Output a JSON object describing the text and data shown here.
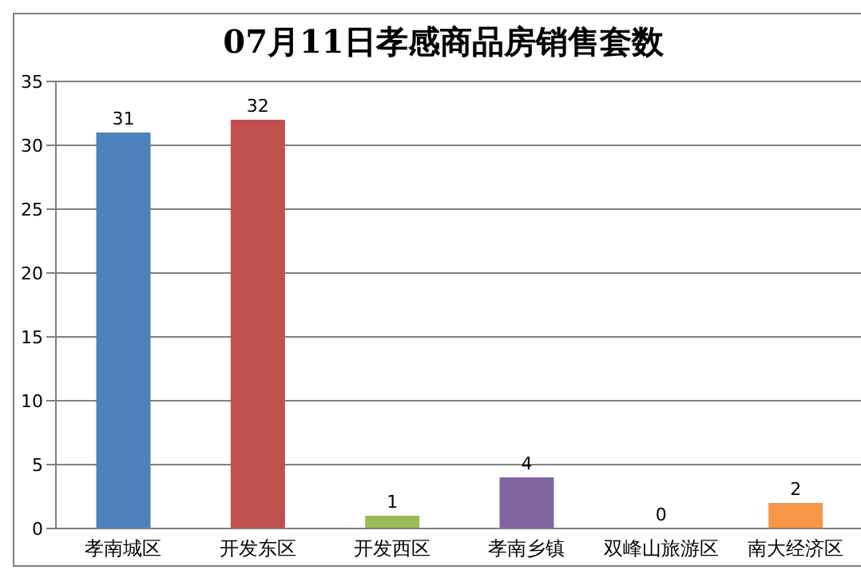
{
  "chart_data": {
    "type": "bar",
    "title": "07月11日孝感商品房销售套数",
    "categories": [
      "孝南城区",
      "开发东区",
      "开发西区",
      "孝南乡镇",
      "双峰山旅游区",
      "南大经济区"
    ],
    "values": [
      31,
      32,
      1,
      4,
      0,
      2
    ],
    "colors": [
      "#4f81bd",
      "#c0504d",
      "#9bbb59",
      "#8064a2",
      "#4bacc6",
      "#f79646"
    ],
    "ylim": [
      0,
      35
    ],
    "yticks": [
      0,
      5,
      10,
      15,
      20,
      25,
      30,
      35
    ],
    "grid": "y",
    "data_labels": true
  }
}
